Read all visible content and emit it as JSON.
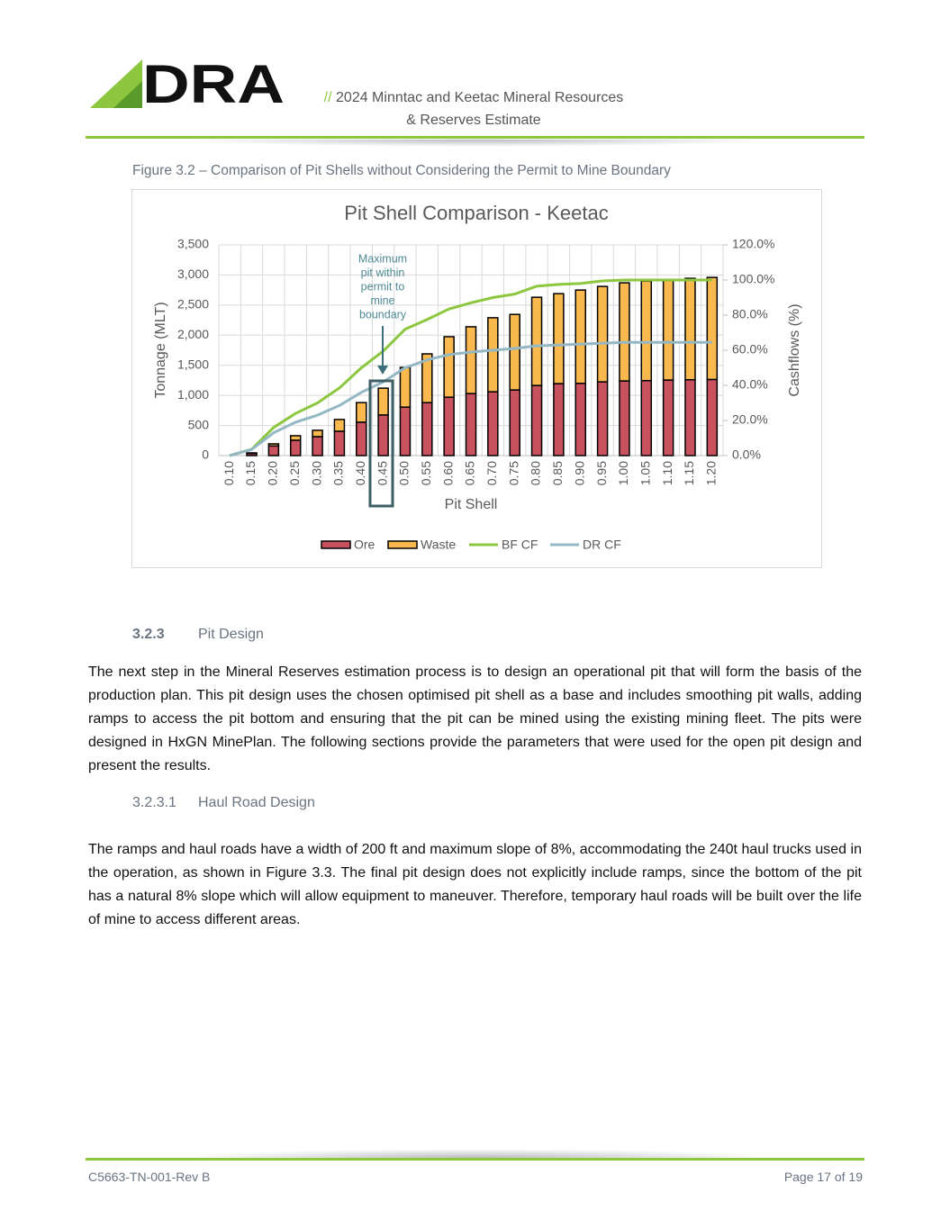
{
  "header": {
    "logo": "DRA",
    "prefix": "//",
    "title_line1": "2024 Minntac and Keetac Mineral Resources",
    "title_line2": "& Reserves Estimate"
  },
  "figure_caption": "Figure 3.2 – Comparison of Pit Shells without Considering the Permit to Mine Boundary",
  "chart_data": {
    "type": "bar",
    "stacked": true,
    "title": "Pit Shell Comparison - Keetac",
    "x_label": "Pit Shell",
    "y_label": "Tonnage (MLT)",
    "y2_label": "Cashflows (%)",
    "categories": [
      "0.10",
      "0.15",
      "0.20",
      "0.25",
      "0.30",
      "0.35",
      "0.40",
      "0.45",
      "0.50",
      "0.55",
      "0.60",
      "0.65",
      "0.70",
      "0.75",
      "0.80",
      "0.85",
      "0.90",
      "0.95",
      "1.00",
      "1.05",
      "1.10",
      "1.15",
      "1.20"
    ],
    "series": [
      {
        "name": "Ore",
        "type": "bar",
        "color": "#c9525f",
        "values": [
          0,
          35,
          160,
          255,
          315,
          405,
          555,
          675,
          805,
          880,
          970,
          1030,
          1060,
          1090,
          1165,
          1195,
          1200,
          1225,
          1240,
          1245,
          1255,
          1260,
          1265
        ]
      },
      {
        "name": "Waste",
        "type": "bar",
        "color": "#f9b94f",
        "values": [
          0,
          10,
          35,
          75,
          105,
          195,
          325,
          445,
          660,
          810,
          1005,
          1110,
          1230,
          1255,
          1465,
          1495,
          1550,
          1585,
          1630,
          1655,
          1660,
          1685,
          1695
        ]
      },
      {
        "name": "BF CF",
        "type": "line",
        "axis": "y2",
        "color": "#8dc63f",
        "values": [
          0,
          3.6,
          16,
          24,
          30,
          38.5,
          50,
          59.5,
          72,
          77.5,
          83.5,
          87,
          90,
          92,
          96.5,
          97.5,
          98,
          99.5,
          100,
          100,
          100,
          100,
          100
        ]
      },
      {
        "name": "DR CF",
        "type": "line",
        "axis": "y2",
        "color": "#93b8c4",
        "values": [
          0,
          3.5,
          13,
          19,
          23,
          28.5,
          36,
          42,
          50,
          54.5,
          57.5,
          59,
          60,
          61,
          62.5,
          63,
          63.5,
          64,
          64.5,
          64.5,
          64.5,
          64.5,
          64.5
        ]
      }
    ],
    "ylim": [
      0,
      3500
    ],
    "yticks": [
      0,
      500,
      {
        "value": 1000,
        "label": "1,000"
      },
      {
        "value": 1500,
        "label": "1,500"
      },
      {
        "value": 2000,
        "label": "2,000"
      },
      {
        "value": 2500,
        "label": "2,500"
      },
      {
        "value": 3000,
        "label": "3,000"
      },
      {
        "value": 3500,
        "label": "3,500"
      }
    ],
    "y2lim": [
      0,
      120
    ],
    "y2ticks": [
      {
        "value": 0,
        "label": "0.0%"
      },
      {
        "value": 20,
        "label": "20.0%"
      },
      {
        "value": 40,
        "label": "40.0%"
      },
      {
        "value": 60,
        "label": "60.0%"
      },
      {
        "value": 80,
        "label": "80.0%"
      },
      {
        "value": 100,
        "label": "100.0%"
      },
      {
        "value": 120,
        "label": "120.0%"
      }
    ],
    "grid": true,
    "legend": "bottom",
    "annotation": [
      "Maximum",
      "pit within",
      "permit to",
      "mine",
      "boundary"
    ]
  },
  "section": {
    "number": "3.2.3",
    "title": "Pit Design"
  },
  "paragraphs": [
    "The next step in the Mineral Reserves estimation process is to design an operational pit that will form the basis of the production plan. This pit design uses the chosen optimised pit shell as a base and includes smoothing pit walls, adding ramps to access the pit bottom and ensuring that the pit can be mined using the existing mining fleet. The pits were designed in HxGN MinePlan. The following sections provide the parameters that were used for the open pit design and present the results.",
    "The ramps and haul roads have a width of 200 ft and maximum slope of 8%, accommodating the 240t haul trucks used in the operation, as shown in Figure 3.3. The final pit design does not explicitly include ramps, since the bottom of the pit has a natural 8% slope which will allow equipment to maneuver. Therefore, temporary haul roads will be built over the life of mine to access different areas."
  ],
  "subsection": {
    "number": "3.2.3.1",
    "title": "Haul Road Design"
  },
  "footer": {
    "doc_id": "C5663-TN-001-Rev B",
    "page": "Page 17 of 19"
  }
}
